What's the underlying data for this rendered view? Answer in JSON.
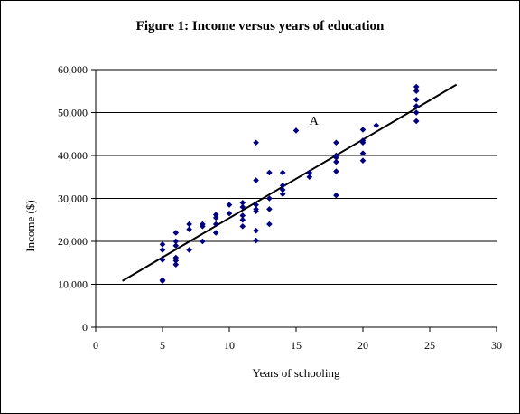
{
  "chart_data": {
    "type": "scatter",
    "title": "Figure 1: Income versus years of education",
    "xlabel": "Years of schooling",
    "ylabel": "Income ($)",
    "xlim": [
      0,
      30
    ],
    "ylim": [
      0,
      60000
    ],
    "x_ticks": [
      "0",
      "5",
      "10",
      "15",
      "20",
      "25",
      "30"
    ],
    "y_ticks": [
      "0",
      "10,000",
      "20,000",
      "30,000",
      "40,000",
      "50,000",
      "60,000"
    ],
    "grid": "horizontal",
    "marker_color": "#000080",
    "line_color": "#000000",
    "points": [
      {
        "x": 5,
        "y": 19300
      },
      {
        "x": 5,
        "y": 18000
      },
      {
        "x": 5,
        "y": 15700
      },
      {
        "x": 5,
        "y": 11000
      },
      {
        "x": 5,
        "y": 10800
      },
      {
        "x": 6,
        "y": 22000
      },
      {
        "x": 6,
        "y": 20000
      },
      {
        "x": 6,
        "y": 19000
      },
      {
        "x": 6,
        "y": 16200
      },
      {
        "x": 6,
        "y": 15500
      },
      {
        "x": 6,
        "y": 14600
      },
      {
        "x": 7,
        "y": 24000
      },
      {
        "x": 7,
        "y": 22800
      },
      {
        "x": 7,
        "y": 18000
      },
      {
        "x": 8,
        "y": 24000
      },
      {
        "x": 8,
        "y": 23500
      },
      {
        "x": 8,
        "y": 20000
      },
      {
        "x": 9,
        "y": 26200
      },
      {
        "x": 9,
        "y": 25500
      },
      {
        "x": 9,
        "y": 24000
      },
      {
        "x": 9,
        "y": 22000
      },
      {
        "x": 10,
        "y": 28500
      },
      {
        "x": 10,
        "y": 26500
      },
      {
        "x": 11,
        "y": 29000
      },
      {
        "x": 11,
        "y": 28000
      },
      {
        "x": 11,
        "y": 26000
      },
      {
        "x": 11,
        "y": 25000
      },
      {
        "x": 11,
        "y": 23500
      },
      {
        "x": 12,
        "y": 43000
      },
      {
        "x": 12,
        "y": 34200
      },
      {
        "x": 12,
        "y": 28500
      },
      {
        "x": 12,
        "y": 27500
      },
      {
        "x": 12,
        "y": 27000
      },
      {
        "x": 12,
        "y": 22500
      },
      {
        "x": 12,
        "y": 20200
      },
      {
        "x": 13,
        "y": 36000
      },
      {
        "x": 13,
        "y": 30000
      },
      {
        "x": 13,
        "y": 27500
      },
      {
        "x": 13,
        "y": 24000
      },
      {
        "x": 14,
        "y": 36000
      },
      {
        "x": 14,
        "y": 33000
      },
      {
        "x": 14,
        "y": 32000
      },
      {
        "x": 14,
        "y": 31000
      },
      {
        "x": 15,
        "y": 45800
      },
      {
        "x": 16,
        "y": 36000
      },
      {
        "x": 16,
        "y": 35000
      },
      {
        "x": 18,
        "y": 43000
      },
      {
        "x": 18,
        "y": 40000
      },
      {
        "x": 18,
        "y": 39500
      },
      {
        "x": 18,
        "y": 38500
      },
      {
        "x": 18,
        "y": 36300
      },
      {
        "x": 18,
        "y": 30700
      },
      {
        "x": 20,
        "y": 46000
      },
      {
        "x": 20,
        "y": 43500
      },
      {
        "x": 20,
        "y": 43000
      },
      {
        "x": 20,
        "y": 40500
      },
      {
        "x": 20,
        "y": 38800
      },
      {
        "x": 21,
        "y": 47000
      },
      {
        "x": 24,
        "y": 56000
      },
      {
        "x": 24,
        "y": 55000
      },
      {
        "x": 24,
        "y": 53000
      },
      {
        "x": 24,
        "y": 51500
      },
      {
        "x": 24,
        "y": 50000
      },
      {
        "x": 24,
        "y": 48000
      }
    ],
    "trend_line": {
      "x": [
        2,
        27
      ],
      "y": [
        10800,
        56500
      ]
    },
    "annotations": [
      {
        "text": "A",
        "x": 16,
        "y": 47200
      }
    ]
  }
}
